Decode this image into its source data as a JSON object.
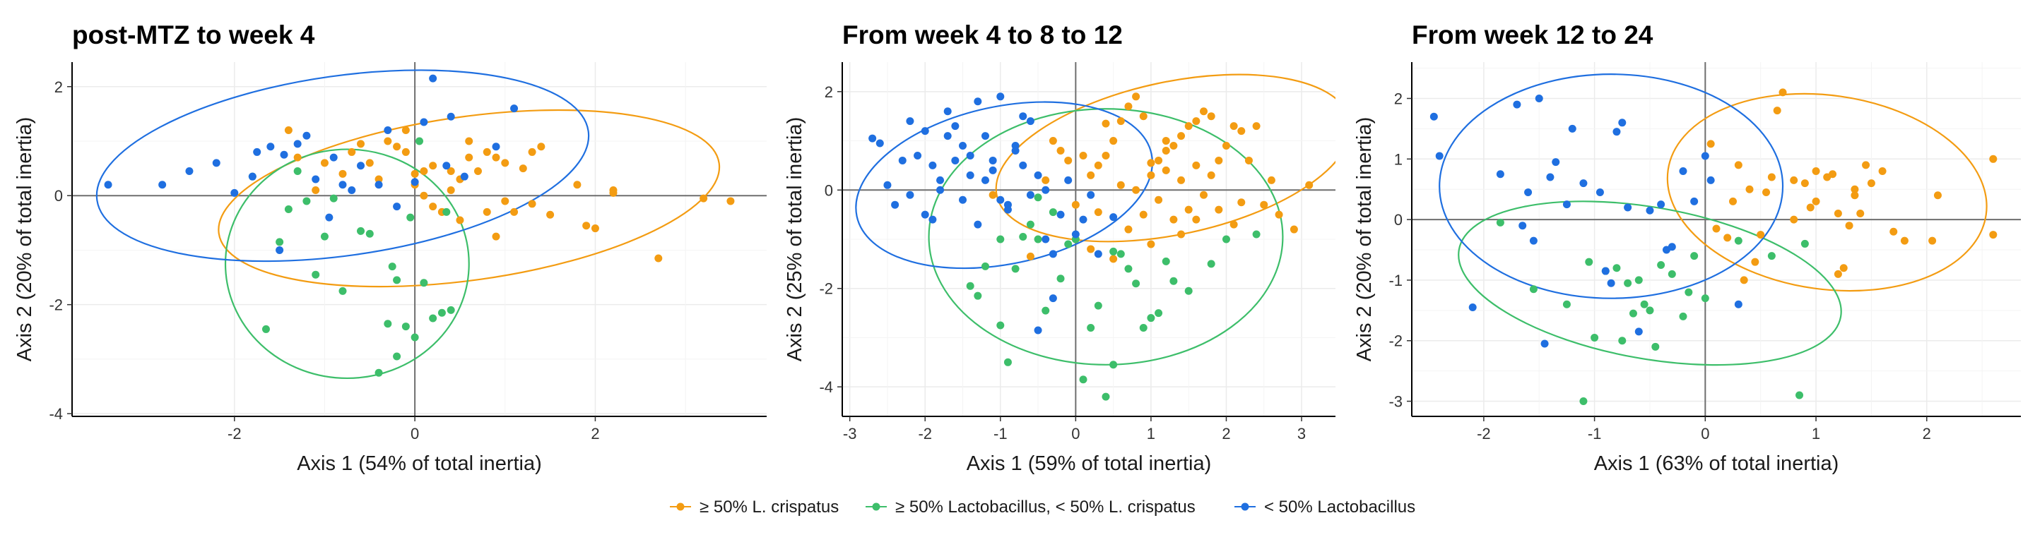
{
  "legend": [
    {
      "label": "≥ 50% L. crispatus",
      "color": "#F39C12"
    },
    {
      "label": "≥ 50% Lactobacillus, < 50% L. crispatus",
      "color": "#3DBE6A"
    },
    {
      "label": "< 50% Lactobacillus",
      "color": "#1F6FE0"
    }
  ],
  "chart_data": [
    {
      "type": "scatter",
      "title": "post-MTZ to week 4",
      "xlabel": "Axis 1 (54% of total inertia)",
      "ylabel": "Axis 2 (20% of total inertia)",
      "xlim": [
        -3.8,
        3.9
      ],
      "ylim": [
        -4.05,
        2.45
      ],
      "xticks": [
        -2,
        0,
        2
      ],
      "yticks": [
        -4,
        -2,
        0,
        2
      ],
      "grid": true,
      "ellipses": [
        {
          "series": 0,
          "cx": 0.6,
          "cy": -0.05,
          "rx": 2.8,
          "ry": 1.5,
          "angle": -8
        },
        {
          "series": 1,
          "cx": -0.75,
          "cy": -1.25,
          "rx": 1.35,
          "ry": 2.1,
          "angle": 0
        },
        {
          "series": 2,
          "cx": -0.8,
          "cy": 0.55,
          "rx": 2.75,
          "ry": 1.65,
          "angle": -8
        }
      ],
      "series": [
        {
          "name": "≥ 50% L. crispatus",
          "x": [
            3.2,
            3.5,
            2.7,
            1.9,
            2.0,
            1.8,
            2.2,
            1.5,
            1.3,
            1.2,
            1.0,
            0.9,
            0.8,
            1.4,
            1.3,
            0.6,
            0.5,
            0.4,
            0.3,
            0.2,
            0.1,
            0.0,
            -0.1,
            -0.2,
            -0.3,
            -0.5,
            -0.7,
            -0.8,
            -1.0,
            -1.1,
            -1.3,
            -1.4,
            0.7,
            0.5,
            0.3,
            0.1,
            -0.1,
            0.9,
            1.1,
            2.2,
            -0.6,
            0.2,
            0.4,
            0.6,
            -0.4,
            0.0,
            0.8,
            1.0
          ],
          "y": [
            -0.05,
            -0.1,
            -1.15,
            -0.55,
            -0.6,
            0.2,
            0.1,
            -0.35,
            -0.15,
            0.5,
            0.6,
            0.7,
            -0.3,
            0.9,
            0.8,
            0.7,
            0.3,
            0.1,
            -0.3,
            -0.2,
            0.0,
            0.2,
            0.8,
            0.9,
            1.0,
            0.6,
            0.8,
            0.4,
            0.6,
            0.1,
            0.7,
            1.2,
            0.45,
            -0.45,
            -0.3,
            0.45,
            1.2,
            -0.75,
            -0.3,
            0.05,
            0.95,
            0.55,
            0.45,
            1.0,
            0.3,
            0.4,
            0.8,
            -0.1
          ]
        },
        {
          "name": "≥ 50% Lactobacillus, < 50% L. crispatus",
          "x": [
            -1.8,
            -1.65,
            -1.5,
            -1.4,
            -1.2,
            -1.0,
            -0.8,
            -0.5,
            -0.4,
            -0.3,
            -0.2,
            -0.1,
            0.0,
            0.1,
            0.2,
            0.3,
            0.4,
            -0.25,
            -0.2,
            0.05,
            -0.6,
            -0.9,
            -1.1,
            0.35,
            -1.3,
            -0.05
          ],
          "y": [
            0.35,
            -2.45,
            -0.85,
            -0.25,
            -0.1,
            -0.75,
            -1.75,
            -0.7,
            -3.25,
            -2.35,
            -2.95,
            -2.4,
            -2.6,
            -1.6,
            -2.25,
            -2.15,
            -2.1,
            -1.3,
            -1.55,
            1.0,
            -0.65,
            -0.05,
            -1.45,
            -0.3,
            0.45,
            -0.4
          ]
        },
        {
          "name": "< 50% Lactobacillus",
          "x": [
            -3.4,
            -2.8,
            -2.5,
            -2.2,
            -2.0,
            -1.8,
            -1.75,
            -1.6,
            -1.5,
            -1.3,
            -1.2,
            -1.1,
            -0.9,
            -0.7,
            -0.6,
            -0.4,
            -0.2,
            0.0,
            0.2,
            0.35,
            0.55,
            0.9,
            1.1,
            0.4,
            -0.3,
            -0.95,
            -1.45,
            0.1,
            -0.8
          ],
          "y": [
            0.2,
            0.2,
            0.45,
            0.6,
            0.05,
            0.35,
            0.8,
            0.9,
            -1.0,
            0.95,
            1.1,
            0.3,
            0.7,
            0.1,
            0.55,
            0.2,
            -0.2,
            0.25,
            2.15,
            0.55,
            0.35,
            0.9,
            1.6,
            1.45,
            1.2,
            -0.4,
            0.75,
            1.35,
            0.2
          ]
        }
      ]
    },
    {
      "type": "scatter",
      "title": "From week 4 to 8 to 12",
      "xlabel": "Axis 1 (59% of total inertia)",
      "ylabel": "Axis 2 (25% of total inertia)",
      "xlim": [
        -3.1,
        3.45
      ],
      "ylim": [
        -4.6,
        2.6
      ],
      "xticks": [
        -3,
        -2,
        -1,
        0,
        1,
        2,
        3
      ],
      "yticks": [
        -4,
        -2,
        0,
        2
      ],
      "grid": true,
      "ellipses": [
        {
          "series": 0,
          "cx": 1.3,
          "cy": 0.65,
          "rx": 2.4,
          "ry": 1.55,
          "angle": -12
        },
        {
          "series": 1,
          "cx": 0.4,
          "cy": -0.95,
          "rx": 2.35,
          "ry": 2.6,
          "angle": 0
        },
        {
          "series": 2,
          "cx": -0.95,
          "cy": 0.1,
          "rx": 2.0,
          "ry": 1.6,
          "angle": -12
        }
      ],
      "series": [
        {
          "name": "≥ 50% L. crispatus",
          "x": [
            3.1,
            2.9,
            2.6,
            2.5,
            2.3,
            2.2,
            2.1,
            2.0,
            1.9,
            1.8,
            1.7,
            1.6,
            1.5,
            1.4,
            1.3,
            1.2,
            1.1,
            1.0,
            0.9,
            0.8,
            0.7,
            0.6,
            0.5,
            0.4,
            0.3,
            0.2,
            0.1,
            0.0,
            -0.1,
            -0.2,
            -0.4,
            1.5,
            1.3,
            1.1,
            0.9,
            1.7,
            1.9,
            2.1,
            0.7,
            0.5,
            1.4,
            1.6,
            0.8,
            1.0,
            1.2,
            2.4,
            2.7,
            0.2,
            0.0,
            -0.6,
            -1.1,
            1.8,
            1.6,
            1.4,
            0.6,
            0.3,
            1.2,
            1.0,
            2.2,
            0.4,
            -0.3
          ],
          "y": [
            0.1,
            -0.8,
            0.2,
            -0.3,
            0.6,
            1.2,
            1.3,
            0.9,
            0.6,
            1.5,
            1.6,
            1.4,
            1.3,
            1.1,
            0.9,
            0.8,
            0.6,
            0.3,
            1.5,
            1.9,
            1.7,
            1.4,
            1.0,
            0.7,
            0.5,
            0.3,
            0.7,
            -0.3,
            0.6,
            0.8,
            0.2,
            -0.4,
            -0.6,
            -0.2,
            -0.5,
            -0.1,
            -0.4,
            -0.7,
            -0.8,
            -1.4,
            0.2,
            -0.6,
            0.0,
            -1.1,
            0.4,
            1.3,
            -0.5,
            -1.2,
            -1.0,
            -1.35,
            -0.1,
            0.3,
            0.5,
            -0.9,
            0.1,
            -0.45,
            1.0,
            0.55,
            -0.25,
            1.35,
            1.0
          ]
        },
        {
          "name": "≥ 50% Lactobacillus, < 50% L. crispatus",
          "x": [
            -1.3,
            -1.2,
            -1.0,
            -0.9,
            -0.8,
            -0.6,
            -0.5,
            -0.4,
            -0.2,
            -0.1,
            0.0,
            0.1,
            0.3,
            0.4,
            0.5,
            0.6,
            0.7,
            0.8,
            0.9,
            1.0,
            1.1,
            1.2,
            1.3,
            1.5,
            1.8,
            2.0,
            2.4,
            -1.0,
            -0.7,
            -0.3,
            0.2,
            0.5,
            -0.5,
            -1.4
          ],
          "y": [
            -2.15,
            -1.55,
            -2.75,
            -3.5,
            -1.6,
            -0.7,
            -1.0,
            -2.45,
            -1.8,
            -1.1,
            -1.0,
            -3.85,
            -2.35,
            -4.2,
            -3.55,
            -1.3,
            -1.6,
            -1.9,
            -2.8,
            -2.6,
            -2.5,
            -1.45,
            -1.85,
            -2.05,
            -1.5,
            -1.0,
            -0.9,
            -1.0,
            -0.95,
            -0.45,
            -2.8,
            -1.25,
            -0.15,
            -1.95
          ]
        },
        {
          "name": "< 50% Lactobacillus",
          "x": [
            -2.7,
            -2.6,
            -2.5,
            -2.3,
            -2.2,
            -2.1,
            -2.0,
            -1.9,
            -1.8,
            -1.7,
            -1.6,
            -1.5,
            -1.4,
            -1.3,
            -1.2,
            -1.1,
            -1.0,
            -0.9,
            -0.8,
            -0.7,
            -0.6,
            -0.5,
            -0.4,
            -0.3,
            -0.2,
            -0.1,
            0.0,
            0.1,
            0.2,
            0.3,
            0.5,
            -2.4,
            -2.2,
            -1.9,
            -1.7,
            -1.5,
            -1.3,
            -1.1,
            -0.9,
            -0.7,
            -0.5,
            -0.3,
            -1.2,
            -1.0,
            -0.8,
            -1.4,
            -1.6,
            -0.6,
            -0.4,
            -2.0,
            -1.8
          ],
          "y": [
            1.05,
            0.95,
            0.1,
            0.6,
            -0.1,
            0.7,
            1.2,
            0.5,
            0.0,
            1.6,
            1.3,
            0.9,
            0.7,
            1.8,
            0.2,
            0.4,
            1.9,
            -0.3,
            0.8,
            0.5,
            -0.1,
            0.3,
            -1.0,
            -2.2,
            -0.5,
            0.2,
            -0.9,
            -0.6,
            -0.1,
            -1.3,
            -0.55,
            -0.3,
            1.4,
            -0.6,
            1.1,
            -0.2,
            -0.7,
            0.6,
            -0.4,
            1.5,
            -2.85,
            -1.3,
            1.1,
            -0.2,
            0.9,
            0.3,
            0.6,
            1.4,
            0.0,
            -0.5,
            0.2
          ]
        }
      ]
    },
    {
      "type": "scatter",
      "title": "From week 12 to 24",
      "xlabel": "Axis 1 (63% of total inertia)",
      "ylabel": "Axis 2 (20% of total inertia)",
      "xlim": [
        -2.65,
        2.85
      ],
      "ylim": [
        -3.25,
        2.6
      ],
      "xticks": [
        -2,
        -1,
        0,
        1,
        2
      ],
      "yticks": [
        -3,
        -2,
        -1,
        0,
        1,
        2
      ],
      "grid": true,
      "ellipses": [
        {
          "series": 0,
          "cx": 1.1,
          "cy": 0.45,
          "rx": 1.45,
          "ry": 1.6,
          "angle": 8
        },
        {
          "series": 1,
          "cx": -0.5,
          "cy": -1.05,
          "rx": 1.75,
          "ry": 1.25,
          "angle": 10
        },
        {
          "series": 2,
          "cx": -0.85,
          "cy": 0.55,
          "rx": 1.55,
          "ry": 1.85,
          "angle": 0
        }
      ],
      "series": [
        {
          "name": "≥ 50% L. crispatus",
          "x": [
            2.6,
            2.1,
            2.05,
            1.7,
            1.6,
            1.5,
            1.45,
            1.35,
            1.3,
            1.25,
            1.2,
            1.1,
            1.0,
            0.95,
            0.9,
            0.8,
            0.7,
            0.65,
            0.6,
            0.5,
            0.4,
            0.3,
            0.25,
            0.2,
            0.1,
            0.05,
            1.8,
            1.4,
            1.2,
            0.8,
            0.55,
            0.45,
            1.0,
            1.35,
            1.15,
            0.35,
            2.6
          ],
          "y": [
            1.0,
            0.4,
            -0.35,
            -0.2,
            0.8,
            0.6,
            0.9,
            0.4,
            -0.1,
            -0.8,
            -0.9,
            0.7,
            0.8,
            0.2,
            0.6,
            0.0,
            2.1,
            1.8,
            0.7,
            -0.25,
            0.5,
            0.9,
            0.3,
            -0.3,
            -0.15,
            1.25,
            -0.35,
            0.1,
            0.1,
            0.65,
            0.45,
            -0.7,
            0.3,
            0.5,
            0.75,
            -1.0,
            -0.25
          ]
        },
        {
          "name": "≥ 50% Lactobacillus, < 50% L. crispatus",
          "x": [
            -1.85,
            -1.55,
            -1.25,
            -1.1,
            -1.0,
            -0.9,
            -0.8,
            -0.7,
            -0.6,
            -0.5,
            -0.4,
            -0.3,
            -0.2,
            -0.1,
            0.0,
            0.3,
            0.6,
            0.85,
            0.9,
            -0.65,
            -0.45,
            -0.15,
            -0.75,
            -1.05,
            -0.55
          ],
          "y": [
            -0.05,
            -1.15,
            -1.4,
            -3.0,
            -1.95,
            -0.85,
            -0.8,
            -1.05,
            -1.0,
            -1.5,
            -0.75,
            -0.9,
            -1.6,
            -0.6,
            -1.3,
            -0.35,
            -0.6,
            -2.9,
            -0.4,
            -1.55,
            -2.1,
            -1.2,
            -2.0,
            -0.7,
            -1.4
          ]
        },
        {
          "name": "< 50% Lactobacillus",
          "x": [
            -2.45,
            -2.4,
            -2.1,
            -1.85,
            -1.7,
            -1.6,
            -1.5,
            -1.45,
            -1.4,
            -1.35,
            -1.2,
            -1.1,
            -0.95,
            -0.9,
            -0.8,
            -0.75,
            -0.7,
            -0.6,
            -0.5,
            -0.4,
            -0.3,
            -0.2,
            -0.1,
            0.0,
            0.3,
            -1.65,
            -1.55,
            -1.25,
            -0.85,
            -0.35,
            0.05
          ],
          "y": [
            1.7,
            1.05,
            -1.45,
            0.75,
            1.9,
            0.45,
            2.0,
            -2.05,
            0.7,
            0.95,
            1.5,
            0.6,
            0.45,
            -0.85,
            1.45,
            1.6,
            0.2,
            -1.85,
            0.15,
            0.25,
            -0.45,
            0.8,
            0.3,
            1.05,
            -1.4,
            -0.1,
            -0.35,
            0.25,
            -1.05,
            -0.5,
            0.65
          ]
        }
      ]
    }
  ]
}
